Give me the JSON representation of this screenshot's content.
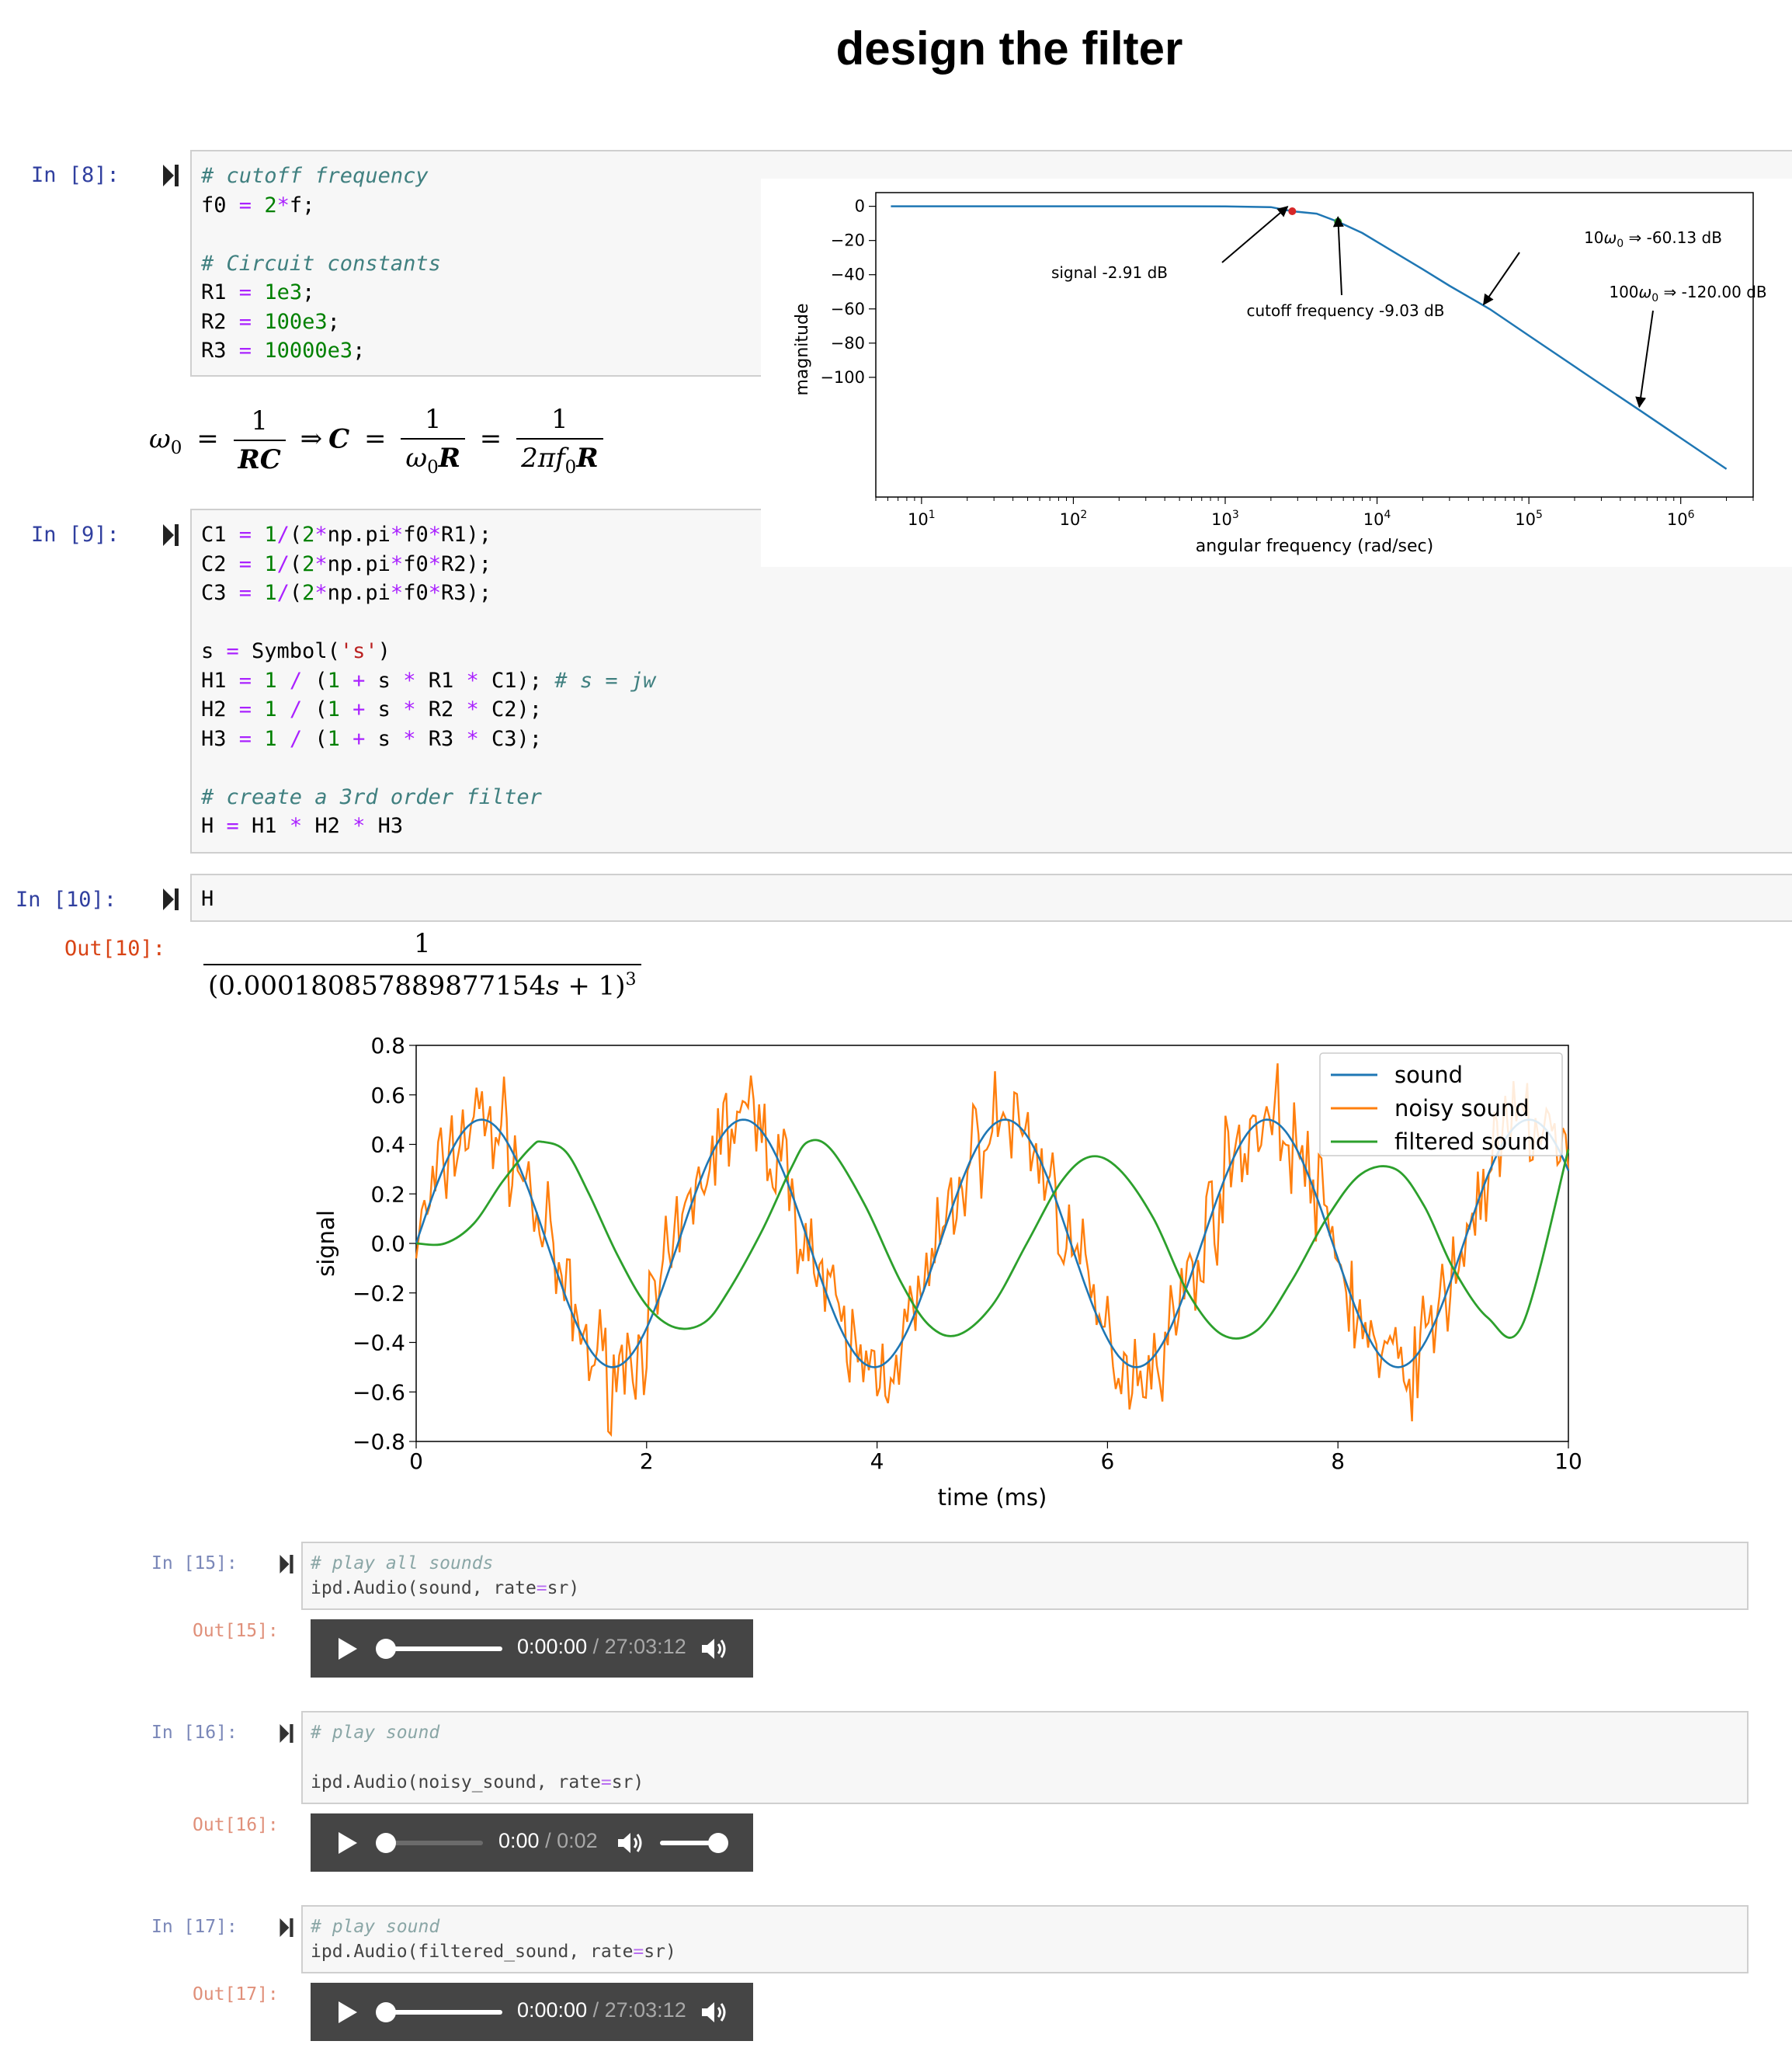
{
  "heading": "design the filter",
  "cells": {
    "c8": {
      "prompt": "In [8]:"
    },
    "c9": {
      "prompt": "In [9]:"
    },
    "c10": {
      "prompt": "In [10]:",
      "out_prompt": "Out[10]:",
      "code": "H",
      "output": {
        "numerator": "1",
        "denominator": "(0.000180857889877154",
        "var": "s",
        "rest": " + 1)",
        "exponent": "3"
      }
    },
    "c15": {
      "prompt": "In [15]:",
      "out_prompt": "Out[15]:",
      "comment": "# play all sounds",
      "code_pre": "ipd.Audio(sound, rate",
      "code_eq": "=",
      "code_post": "sr)",
      "player": {
        "current": "0:00:00",
        "sep": " / ",
        "total": "27:03:12",
        "progress": 0
      }
    },
    "c16": {
      "prompt": "In [16]:",
      "out_prompt": "Out[16]:",
      "comment": "# play sound",
      "code_pre": "ipd.Audio(noisy_sound, rate",
      "code_eq": "=",
      "code_post": "sr)",
      "player": {
        "current": "0:00",
        "sep": " / ",
        "total": "0:02",
        "progress": 0,
        "volume": 1
      }
    },
    "c17": {
      "prompt": "In [17]:",
      "out_prompt": "Out[17]:",
      "comment": "# play sound",
      "code_pre": "ipd.Audio(filtered_sound, rate",
      "code_eq": "=",
      "code_post": "sr)",
      "player": {
        "current": "0:00:00",
        "sep": " / ",
        "total": "27:03:12",
        "progress": 0
      }
    }
  },
  "equation": {
    "omega": "ω",
    "zero": "0",
    "eq": "=",
    "one": "1",
    "rc": "RC",
    "implies": "⇒",
    "c": "C",
    "r": "R",
    "two_pi": "2π",
    "f": "f"
  },
  "chart_data": [
    {
      "type": "line",
      "xlabel": "angular frequency (rad/sec)",
      "ylabel": "magnitude",
      "xscale": "log",
      "xlim": [
        5,
        3000000
      ],
      "ylim": [
        -170,
        8
      ],
      "x_ticks": [
        10,
        100,
        1000,
        10000,
        100000,
        1000000
      ],
      "y_ticks": [
        0,
        -20,
        -40,
        -60,
        -80,
        -100
      ],
      "y_tick_labels": [
        "0",
        "−20",
        "−40",
        "−60",
        "−80",
        "−100"
      ],
      "x_tick_base": "10",
      "x_tick_exps": [
        "1",
        "2",
        "3",
        "4",
        "5",
        "6"
      ],
      "series": [
        {
          "color": "#1f77b4",
          "x": [
            6.28,
            100,
            1000,
            2000,
            2764,
            4000,
            5529,
            8000,
            12000,
            20000,
            30000,
            55290,
            100000,
            300000,
            552900,
            1000000,
            2000000
          ],
          "y": [
            0.0,
            0.0,
            -0.03,
            -0.5,
            -2.91,
            -4.3,
            -9.03,
            -15.6,
            -25.0,
            -36.8,
            -46.5,
            -60.13,
            -75.6,
            -104.2,
            -120.0,
            -135.5,
            -153.6
          ]
        }
      ],
      "points": [
        {
          "x": 2764,
          "y": -2.91,
          "color": "#d62728"
        },
        {
          "x": 5529,
          "y": -9.03,
          "color": "#2ca02c"
        }
      ],
      "annotations": [
        {
          "text": "signal -2.91 dB",
          "x": 2764,
          "y": -2.91
        },
        {
          "text": "cutoff frequency -9.03 dB",
          "x": 5529,
          "y": -9.03
        },
        {
          "text_prefix": "10",
          "sym": "ω",
          "sub": "0",
          "text_suffix": " ⇒  -60.13  dB",
          "x": 55290,
          "y": -60.13
        },
        {
          "text_prefix": "100",
          "sym": "ω",
          "sub": "0",
          "text_suffix": " ⇒  -120.00  dB",
          "x": 552900,
          "y": -120.0
        }
      ]
    },
    {
      "type": "line",
      "xlabel": "time (ms)",
      "ylabel": "signal",
      "xlim": [
        0,
        10
      ],
      "ylim": [
        -0.8,
        0.8
      ],
      "x_ticks": [
        0,
        2,
        4,
        6,
        8,
        10
      ],
      "x_tick_labels": [
        "0",
        "2",
        "4",
        "6",
        "8",
        "10"
      ],
      "y_ticks": [
        0.8,
        0.6,
        0.4,
        0.2,
        0.0,
        -0.2,
        -0.4,
        -0.6,
        -0.8
      ],
      "y_tick_labels": [
        "0.8",
        "0.6",
        "0.4",
        "0.2",
        "0.0",
        "−0.2",
        "−0.4",
        "−0.6",
        "−0.8"
      ],
      "legend_position": "top-right",
      "series": [
        {
          "name": "sound",
          "color": "#1f77b4",
          "amplitude": 0.5,
          "frequency_khz": 0.44,
          "phase": 0
        },
        {
          "name": "noisy sound",
          "color": "#ff7f0e",
          "amplitude": 0.5,
          "frequency_khz": 0.44,
          "phase": 0,
          "noise": 0.15
        },
        {
          "name": "filtered sound",
          "color": "#2ca02c",
          "x": [
            0,
            0.25,
            0.5,
            0.75,
            1.0,
            1.1,
            1.3,
            1.5,
            1.75,
            2.0,
            2.25,
            2.5,
            2.7,
            3.0,
            3.25,
            3.4,
            3.6,
            3.9,
            4.2,
            4.45,
            4.7,
            5.0,
            5.3,
            5.6,
            5.85,
            6.1,
            6.4,
            6.7,
            7.0,
            7.3,
            7.6,
            7.9,
            8.2,
            8.5,
            8.75,
            9.0,
            9.3,
            9.6,
            10.0
          ],
          "y": [
            0.0,
            0.0,
            0.08,
            0.25,
            0.39,
            0.41,
            0.37,
            0.2,
            -0.05,
            -0.25,
            -0.34,
            -0.32,
            -0.2,
            0.05,
            0.3,
            0.41,
            0.38,
            0.15,
            -0.15,
            -0.33,
            -0.37,
            -0.25,
            0.0,
            0.25,
            0.35,
            0.3,
            0.1,
            -0.2,
            -0.37,
            -0.35,
            -0.15,
            0.1,
            0.28,
            0.3,
            0.15,
            -0.1,
            -0.3,
            -0.33,
            0.38
          ]
        }
      ]
    }
  ]
}
